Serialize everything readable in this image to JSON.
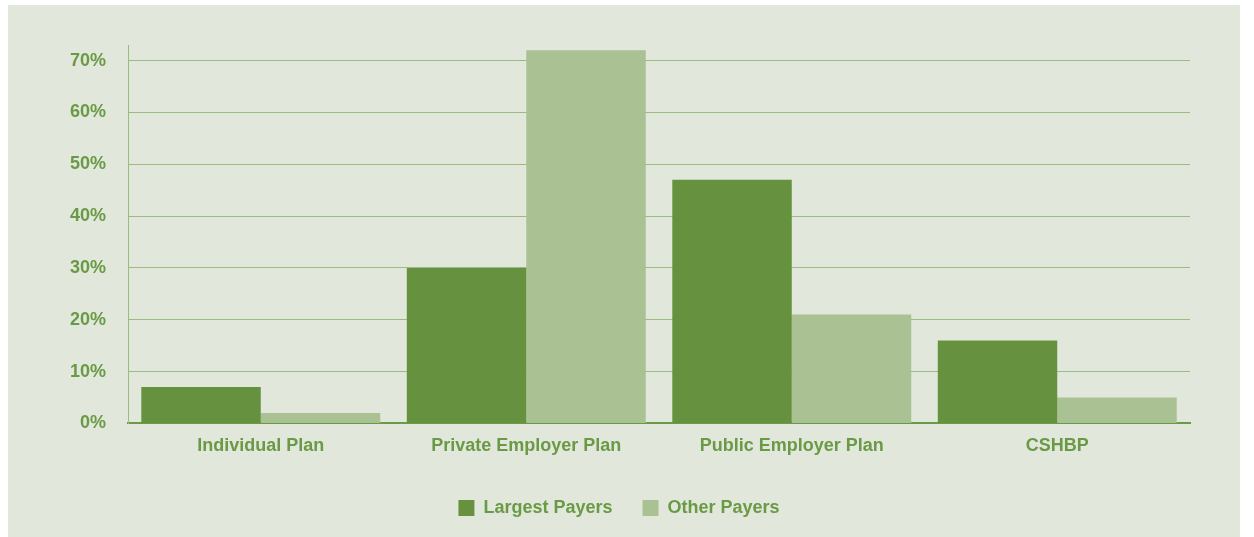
{
  "chart_data": {
    "type": "bar",
    "categories": [
      "Individual Plan",
      "Private Employer Plan",
      "Public Employer Plan",
      "CSHBP"
    ],
    "series": [
      {
        "name": "Largest Payers",
        "color": "#66923f",
        "values": [
          7,
          30,
          47,
          16
        ]
      },
      {
        "name": "Other Payers",
        "color": "#a9c193",
        "values": [
          2,
          72,
          21,
          5
        ]
      }
    ],
    "ylim": [
      0,
      73
    ],
    "yticks": [
      {
        "value": 0,
        "label": "0%"
      },
      {
        "value": 10,
        "label": "10%"
      },
      {
        "value": 20,
        "label": "20%"
      },
      {
        "value": 30,
        "label": "30%"
      },
      {
        "value": 40,
        "label": "40%"
      },
      {
        "value": 50,
        "label": "50%"
      },
      {
        "value": 60,
        "label": "60%"
      },
      {
        "value": 70,
        "label": "70%"
      }
    ],
    "grid": "y",
    "legend": "bottom"
  }
}
